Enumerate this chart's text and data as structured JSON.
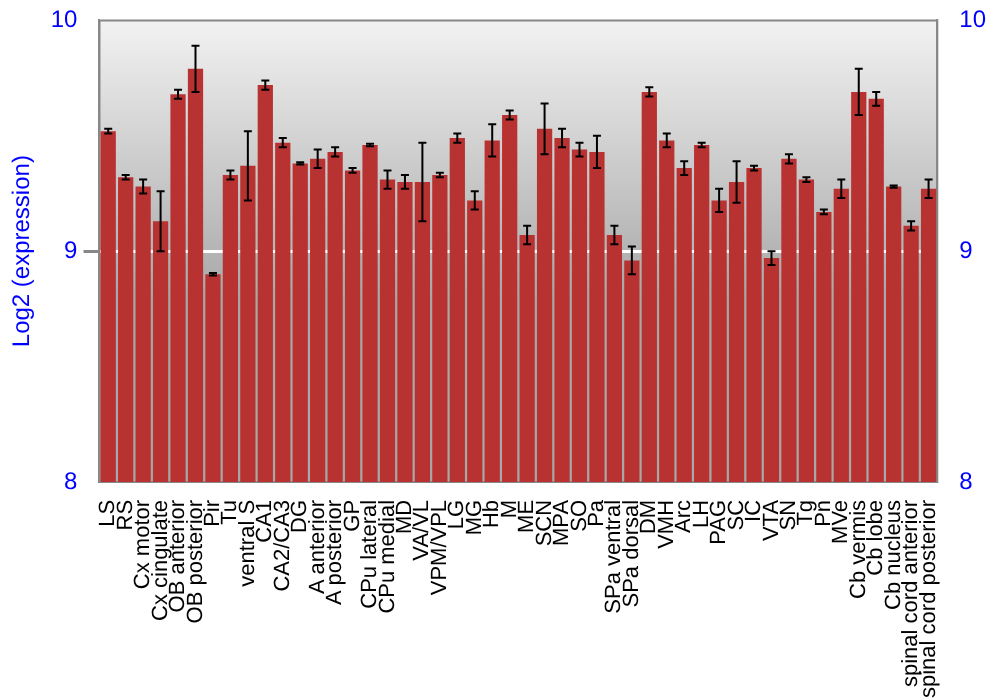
{
  "chart_data": {
    "type": "bar",
    "ylabel": "Log2 (expression)",
    "categories": [
      "LS",
      "RS",
      "Cx motor",
      "Cx cingulate",
      "OB anterior",
      "OB posterior",
      "Pir",
      "Tu",
      "ventral S",
      "CA1",
      "CA2/CA3",
      "DG",
      "A anterior",
      "A posterior",
      "GP",
      "CPu lateral",
      "CPu medial",
      "MD",
      "VA/VL",
      "VPM/VPL",
      "LG",
      "MG",
      "Hb",
      "M",
      "ME",
      "SCN",
      "MPA",
      "SO",
      "Pa",
      "SPa ventral",
      "SPa dorsal",
      "DM",
      "VMH",
      "Arc",
      "LH",
      "PAG",
      "SC",
      "IC",
      "VTA",
      "SN",
      "Tg",
      "Pn",
      "MVe",
      "Cb vermis",
      "Cb lobe",
      "Cb nucleus",
      "spinal cord anterior",
      "spinal cord posterior"
    ],
    "values": [
      9.52,
      9.32,
      9.28,
      9.13,
      9.68,
      9.79,
      8.9,
      9.33,
      9.37,
      9.72,
      9.47,
      9.38,
      9.4,
      9.43,
      9.35,
      9.46,
      9.31,
      9.3,
      9.3,
      9.33,
      9.49,
      9.22,
      9.48,
      9.59,
      9.07,
      9.53,
      9.49,
      9.44,
      9.43,
      9.07,
      8.96,
      9.69,
      9.48,
      9.36,
      9.46,
      9.22,
      9.3,
      9.36,
      8.97,
      9.4,
      9.31,
      9.17,
      9.27,
      9.69,
      9.66,
      9.28,
      9.11,
      9.27
    ],
    "errors": [
      0.01,
      0.01,
      0.03,
      0.13,
      0.02,
      0.1,
      0.005,
      0.02,
      0.15,
      0.02,
      0.02,
      0.005,
      0.04,
      0.02,
      0.01,
      0.005,
      0.04,
      0.03,
      0.17,
      0.01,
      0.02,
      0.04,
      0.07,
      0.02,
      0.04,
      0.11,
      0.04,
      0.03,
      0.07,
      0.04,
      0.06,
      0.02,
      0.03,
      0.03,
      0.01,
      0.05,
      0.09,
      0.01,
      0.03,
      0.02,
      0.01,
      0.01,
      0.04,
      0.1,
      0.03,
      0.005,
      0.02,
      0.04
    ],
    "color": "#b83232",
    "ylim": [
      8,
      10
    ],
    "yticks": [
      8,
      9,
      10
    ],
    "y2lim": [
      8,
      10
    ],
    "y2ticks": [
      8,
      9,
      10
    ],
    "grid": "y",
    "legend": false
  }
}
